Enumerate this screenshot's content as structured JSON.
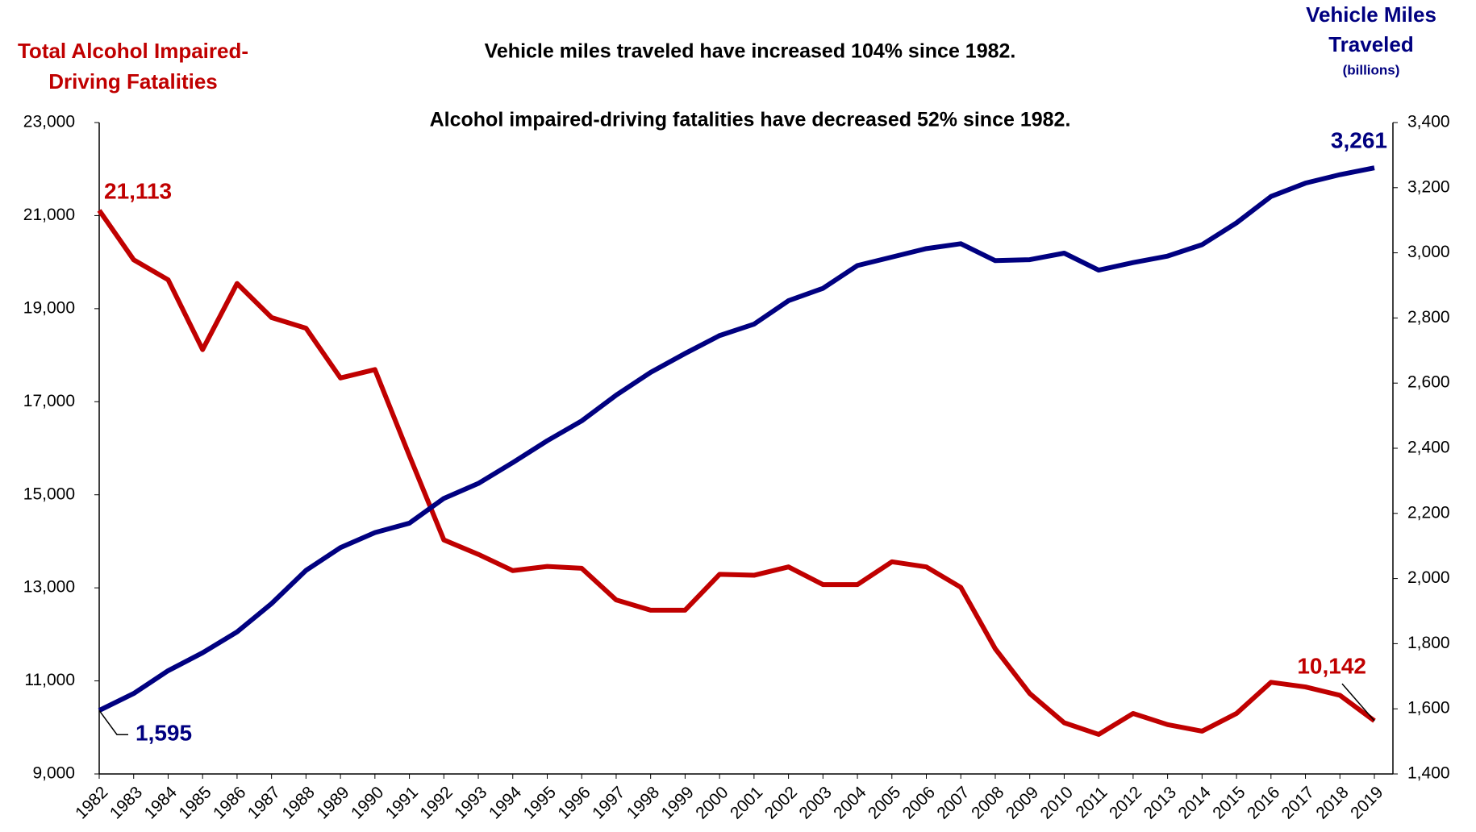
{
  "chart_data": {
    "type": "line",
    "y_label": [
      "Total Alcohol Impaired-",
      "Driving Fatalities"
    ],
    "y2_label": [
      "Vehicle Miles",
      "Traveled",
      "(billions)"
    ],
    "annotations": [
      "Vehicle miles traveled have increased 104% since 1982.",
      "Alcohol impaired-driving fatalities have decreased 52% since 1982."
    ],
    "categories": [
      "1982",
      "1983",
      "1984",
      "1985",
      "1986",
      "1987",
      "1988",
      "1989",
      "1990",
      "1991",
      "1992",
      "1993",
      "1994",
      "1995",
      "1996",
      "1997",
      "1998",
      "1999",
      "2000",
      "2001",
      "2002",
      "2003",
      "2004",
      "2005",
      "2006",
      "2007",
      "2008",
      "2009",
      "2010",
      "2011",
      "2012",
      "2013",
      "2014",
      "2015",
      "2016",
      "2017",
      "2018",
      "2019"
    ],
    "series": [
      {
        "name": "Total Alcohol Impaired-Driving Fatalities",
        "color": "#c00000",
        "axis": "y",
        "values": [
          21113,
          20050,
          19620,
          18120,
          19540,
          18810,
          18580,
          17510,
          17690,
          15840,
          14030,
          13720,
          13370,
          13460,
          13420,
          12740,
          12520,
          12520,
          13290,
          13270,
          13450,
          13070,
          13070,
          13560,
          13450,
          13010,
          11690,
          10730,
          10100,
          9850,
          10300,
          10060,
          9920,
          10300,
          10970,
          10870,
          10690,
          10142
        ],
        "value_labels": [
          "21,113",
          null,
          null,
          null,
          null,
          null,
          null,
          null,
          null,
          null,
          null,
          null,
          null,
          null,
          null,
          null,
          null,
          null,
          null,
          null,
          null,
          null,
          null,
          null,
          null,
          null,
          null,
          null,
          null,
          null,
          null,
          null,
          null,
          null,
          null,
          null,
          null,
          "10,142"
        ]
      },
      {
        "name": "Vehicle Miles Traveled",
        "color": "#000080",
        "axis": "y2",
        "values": [
          1595,
          1647,
          1717,
          1772,
          1836,
          1923,
          2025,
          2095,
          2141,
          2170,
          2246,
          2292,
          2356,
          2423,
          2484,
          2563,
          2633,
          2691,
          2746,
          2781,
          2853,
          2891,
          2961,
          2987,
          3013,
          3028,
          2976,
          2979,
          2999,
          2947,
          2970,
          2990,
          3025,
          3092,
          3173,
          3214,
          3240,
          3261
        ],
        "value_labels": [
          "1,595",
          null,
          null,
          null,
          null,
          null,
          null,
          null,
          null,
          null,
          null,
          null,
          null,
          null,
          null,
          null,
          null,
          null,
          null,
          null,
          null,
          null,
          null,
          null,
          null,
          null,
          null,
          null,
          null,
          null,
          null,
          null,
          null,
          null,
          null,
          null,
          null,
          "3,261"
        ]
      }
    ],
    "ylim": [
      9000,
      23000
    ],
    "yticks": [
      {
        "value": 9000,
        "label": "9,000"
      },
      {
        "value": 11000,
        "label": "11,000"
      },
      {
        "value": 13000,
        "label": "13,000"
      },
      {
        "value": 15000,
        "label": "15,000"
      },
      {
        "value": 17000,
        "label": "17,000"
      },
      {
        "value": 19000,
        "label": "19,000"
      },
      {
        "value": 21000,
        "label": "21,000"
      },
      {
        "value": 23000,
        "label": "23,000"
      }
    ],
    "y2lim": [
      1400,
      3400
    ],
    "y2ticks": [
      {
        "value": 1400,
        "label": "1,400"
      },
      {
        "value": 1600,
        "label": "1,600"
      },
      {
        "value": 1800,
        "label": "1,800"
      },
      {
        "value": 2000,
        "label": "2,000"
      },
      {
        "value": 2200,
        "label": "2,200"
      },
      {
        "value": 2400,
        "label": "2,400"
      },
      {
        "value": 2600,
        "label": "2,600"
      },
      {
        "value": 2800,
        "label": "2,800"
      },
      {
        "value": 3000,
        "label": "3,000"
      },
      {
        "value": 3200,
        "label": "3,200"
      },
      {
        "value": 3400,
        "label": "3,400"
      }
    ],
    "grid": false
  }
}
